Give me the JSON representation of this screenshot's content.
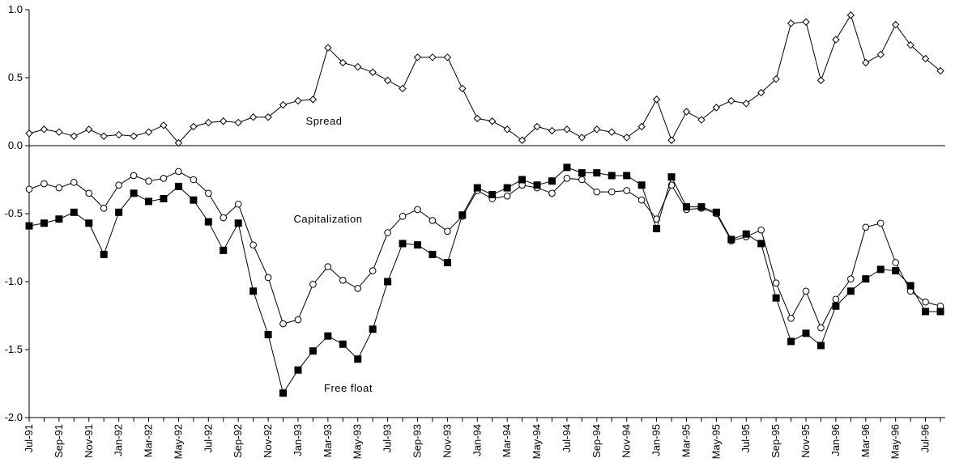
{
  "chart_data": {
    "type": "line",
    "categories": [
      "Jul-91",
      null,
      "Sep-91",
      null,
      "Nov-91",
      null,
      "Jan-92",
      null,
      "Mar-92",
      null,
      "May-92",
      null,
      "Jul-92",
      null,
      "Sep-92",
      null,
      "Nov-92",
      null,
      "Jan-93",
      null,
      "Mar-93",
      null,
      "May-93",
      null,
      "Jul-93",
      null,
      "Sep-93",
      null,
      "Nov-93",
      null,
      "Jan-94",
      null,
      "Mar-94",
      null,
      "May-94",
      null,
      "Jul-94",
      null,
      "Sep-94",
      null,
      "Nov-94",
      null,
      "Jan-95",
      null,
      "Mar-95",
      null,
      "May-95",
      null,
      "Jul-95",
      null,
      "Sep-95",
      null,
      "Nov-95",
      null,
      "Jan-96",
      null,
      "Mar-96",
      null,
      "May-96",
      null,
      "Jul-96",
      null
    ],
    "series": [
      {
        "name": "Spread",
        "color": "#000000",
        "marker": "diamond",
        "values": [
          0.09,
          0.12,
          0.1,
          0.07,
          0.12,
          0.07,
          0.08,
          0.07,
          0.1,
          0.15,
          0.02,
          0.14,
          0.17,
          0.18,
          0.17,
          0.21,
          0.21,
          0.3,
          0.33,
          0.34,
          0.72,
          0.61,
          0.58,
          0.54,
          0.48,
          0.42,
          0.65,
          0.65,
          0.65,
          0.42,
          0.2,
          0.18,
          0.12,
          0.04,
          0.14,
          0.11,
          0.12,
          0.06,
          0.12,
          0.1,
          0.06,
          0.14,
          0.34,
          0.04,
          0.25,
          0.19,
          0.28,
          0.33,
          0.31,
          0.39,
          0.49,
          0.9,
          0.91,
          0.48,
          0.78,
          0.96,
          0.61,
          0.67,
          0.89,
          0.74,
          0.64,
          0.55
        ]
      },
      {
        "name": "Capitalization",
        "color": "#000000",
        "marker": "circle",
        "values": [
          -0.32,
          -0.28,
          -0.31,
          -0.27,
          -0.35,
          -0.46,
          -0.29,
          -0.22,
          -0.26,
          -0.24,
          -0.19,
          -0.25,
          -0.35,
          -0.53,
          -0.43,
          -0.73,
          -0.97,
          -1.31,
          -1.28,
          -1.02,
          -0.89,
          -0.99,
          -1.05,
          -0.92,
          -0.64,
          -0.52,
          -0.47,
          -0.55,
          -0.63,
          -0.52,
          -0.33,
          -0.39,
          -0.37,
          -0.29,
          -0.31,
          -0.35,
          -0.24,
          -0.25,
          -0.34,
          -0.34,
          -0.33,
          -0.4,
          -0.54,
          -0.29,
          -0.47,
          -0.46,
          -0.5,
          -0.7,
          -0.67,
          -0.62,
          -1.01,
          -1.27,
          -1.07,
          -1.34,
          -1.13,
          -0.98,
          -0.6,
          -0.57,
          -0.86,
          -1.07,
          -1.15,
          -1.18
        ]
      },
      {
        "name": "Free float",
        "color": "#000000",
        "marker": "square",
        "values": [
          -0.59,
          -0.57,
          -0.54,
          -0.49,
          -0.57,
          -0.8,
          -0.49,
          -0.35,
          -0.41,
          -0.39,
          -0.3,
          -0.4,
          -0.56,
          -0.77,
          -0.57,
          -1.07,
          -1.39,
          -1.82,
          -1.65,
          -1.51,
          -1.4,
          -1.46,
          -1.57,
          -1.35,
          -1.0,
          -0.72,
          -0.73,
          -0.8,
          -0.86,
          -0.51,
          -0.31,
          -0.36,
          -0.31,
          -0.25,
          -0.29,
          -0.26,
          -0.16,
          -0.2,
          -0.2,
          -0.22,
          -0.22,
          -0.29,
          -0.61,
          -0.23,
          -0.45,
          -0.45,
          -0.49,
          -0.69,
          -0.65,
          -0.72,
          -1.12,
          -1.44,
          -1.38,
          -1.47,
          -1.18,
          -1.07,
          -0.98,
          -0.91,
          -0.92,
          -1.03,
          -1.22,
          -1.22
        ]
      }
    ],
    "ylim": [
      -2,
      1
    ],
    "yticks": [
      {
        "value": -2,
        "label": "-2.0"
      },
      -1.5,
      {
        "value": -1,
        "label": "-1.0"
      },
      -0.5,
      {
        "value": 0,
        "label": "0.0"
      },
      0.5,
      {
        "value": 1,
        "label": "1.0"
      }
    ],
    "grid": false
  }
}
